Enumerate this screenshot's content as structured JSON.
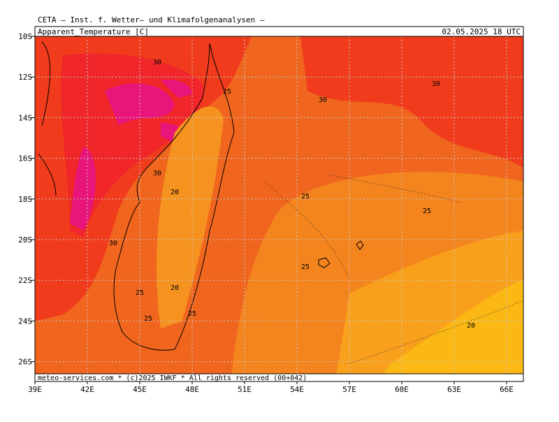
{
  "header": {
    "title": "CETA — Inst. f. Wetter— und Klimafolgenanalysen —",
    "parameter": "Apparent_Temperature [C]",
    "valid_time": "02.05.2025 18 UTC"
  },
  "footer": "meteo-services.com * (c)2025 IWKF * All rights reserved (00+042)",
  "latitude_labels": [
    "10S",
    "12S",
    "14S",
    "16S",
    "18S",
    "20S",
    "22S",
    "24S",
    "26S"
  ],
  "longitude_labels": [
    "39E",
    "42E",
    "45E",
    "48E",
    "51E",
    "54E",
    "57E",
    "60E",
    "63E",
    "66E"
  ],
  "contour_labels": [
    "30",
    "30",
    "30",
    "30",
    "30",
    "25",
    "25",
    "25",
    "25",
    "25",
    "25",
    "25",
    "20",
    "20",
    "20"
  ]
}
